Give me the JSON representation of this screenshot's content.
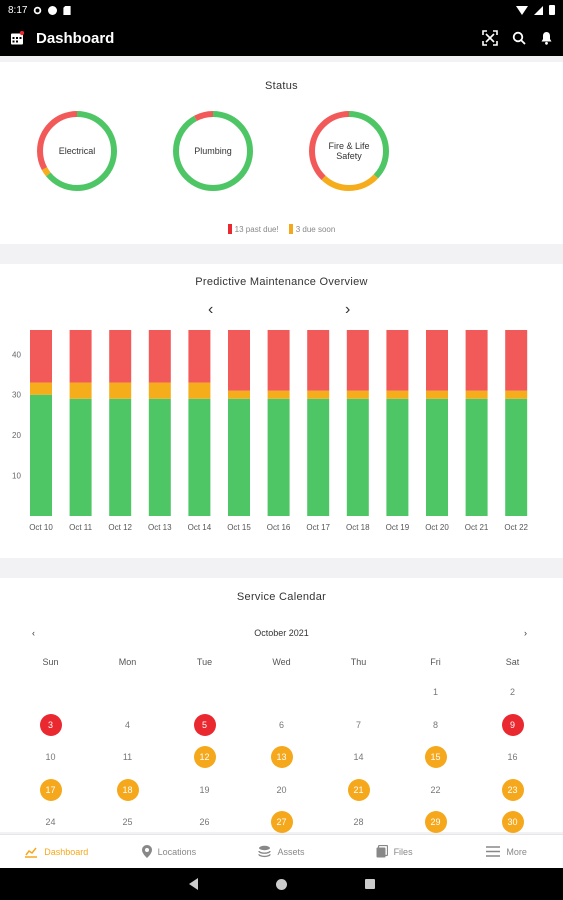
{
  "status_bar": {
    "time": "8:17"
  },
  "app_bar": {
    "title": "Dashboard"
  },
  "status": {
    "title": "Status",
    "donuts": [
      {
        "label": "Electrical",
        "past_due_fraction": 0.33,
        "due_soon_fraction": 0.03
      },
      {
        "label": "Plumbing",
        "past_due_fraction": 0.08,
        "due_soon_fraction": 0.0
      },
      {
        "label": "Fire & Life Safety",
        "past_due_fraction": 0.38,
        "due_soon_fraction": 0.25
      }
    ],
    "legend": {
      "past_due": "13 past due!",
      "due_soon": "3 due soon"
    }
  },
  "predictive": {
    "title": "Predictive Maintenance Overview",
    "prev_arrow": "‹",
    "next_arrow": "›"
  },
  "chart_data": {
    "type": "bar",
    "stacked": true,
    "categories": [
      "Oct 10",
      "Oct 11",
      "Oct 12",
      "Oct 13",
      "Oct 14",
      "Oct 15",
      "Oct 16",
      "Oct 17",
      "Oct 18",
      "Oct 19",
      "Oct 20",
      "Oct 21",
      "Oct 22"
    ],
    "series": [
      {
        "values": [
          30,
          29,
          29,
          29,
          29,
          29,
          29,
          29,
          29,
          29,
          29,
          29,
          29
        ]
      },
      {
        "values": [
          3,
          4,
          4,
          4,
          4,
          2,
          2,
          2,
          2,
          2,
          2,
          2,
          2
        ]
      },
      {
        "values": [
          13,
          13,
          13,
          13,
          13,
          15,
          15,
          15,
          15,
          15,
          15,
          15,
          15
        ]
      }
    ],
    "yticks": [
      10,
      20,
      30,
      40
    ],
    "ylim": [
      0,
      46
    ],
    "grid": false,
    "legend": "none"
  },
  "calendar": {
    "title": "Service Calendar",
    "month": "October 2021",
    "prev_arrow": "‹",
    "next_arrow": "›",
    "weekdays": [
      "Sun",
      "Mon",
      "Tue",
      "Wed",
      "Thu",
      "Fri",
      "Sat"
    ],
    "days": [
      {
        "d": "",
        "s": ""
      },
      {
        "d": "",
        "s": ""
      },
      {
        "d": "",
        "s": ""
      },
      {
        "d": "",
        "s": ""
      },
      {
        "d": "",
        "s": ""
      },
      {
        "d": "1",
        "s": ""
      },
      {
        "d": "2",
        "s": ""
      },
      {
        "d": "3",
        "s": "past"
      },
      {
        "d": "4",
        "s": ""
      },
      {
        "d": "5",
        "s": "past"
      },
      {
        "d": "6",
        "s": ""
      },
      {
        "d": "7",
        "s": ""
      },
      {
        "d": "8",
        "s": ""
      },
      {
        "d": "9",
        "s": "past"
      },
      {
        "d": "10",
        "s": ""
      },
      {
        "d": "11",
        "s": ""
      },
      {
        "d": "12",
        "s": "soon"
      },
      {
        "d": "13",
        "s": "soon"
      },
      {
        "d": "14",
        "s": ""
      },
      {
        "d": "15",
        "s": "soon"
      },
      {
        "d": "16",
        "s": ""
      },
      {
        "d": "17",
        "s": "soon"
      },
      {
        "d": "18",
        "s": "soon"
      },
      {
        "d": "19",
        "s": ""
      },
      {
        "d": "20",
        "s": ""
      },
      {
        "d": "21",
        "s": "soon"
      },
      {
        "d": "22",
        "s": ""
      },
      {
        "d": "23",
        "s": "soon"
      },
      {
        "d": "24",
        "s": ""
      },
      {
        "d": "25",
        "s": ""
      },
      {
        "d": "26",
        "s": ""
      },
      {
        "d": "27",
        "s": "soon"
      },
      {
        "d": "28",
        "s": ""
      },
      {
        "d": "29",
        "s": "soon"
      },
      {
        "d": "30",
        "s": "soon"
      }
    ]
  },
  "bottom_nav": {
    "items": [
      {
        "label": "Dashboard",
        "icon": "chart-icon",
        "active": true
      },
      {
        "label": "Locations",
        "icon": "pin-icon",
        "active": false
      },
      {
        "label": "Assets",
        "icon": "layers-icon",
        "active": false
      },
      {
        "label": "Files",
        "icon": "files-icon",
        "active": false
      },
      {
        "label": "More",
        "icon": "menu-icon",
        "active": false
      }
    ]
  },
  "colors": {
    "past_due": "#f25a5a",
    "due_soon": "#f6ad1c",
    "ok": "#4fc665",
    "accent": "#f6a81c"
  }
}
